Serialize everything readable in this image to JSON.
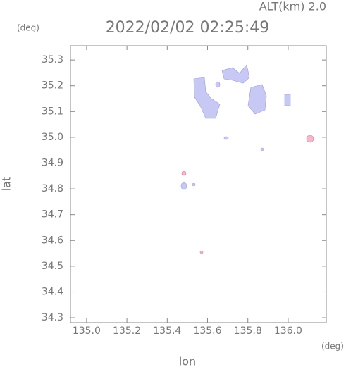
{
  "chart_data": {
    "type": "map",
    "title": "2022/02/02 02:25:49",
    "subtitle": "ALT(km) 2.0",
    "x_label": "lon",
    "y_label": "lat",
    "x_unit": "(deg)",
    "y_unit": "(deg)",
    "xlim": [
      134.92,
      136.189
    ],
    "ylim": [
      34.281,
      35.355
    ],
    "xticks": [
      {
        "value": 135,
        "label": "135.0"
      },
      135.2,
      135.4,
      135.6,
      135.8,
      {
        "value": 136,
        "label": "136.0"
      }
    ],
    "yticks": [
      34.3,
      34.4,
      34.5,
      34.6,
      34.7,
      34.8,
      34.9,
      {
        "value": 35,
        "label": "35.0"
      },
      35.1,
      35.2,
      35.3
    ]
  }
}
